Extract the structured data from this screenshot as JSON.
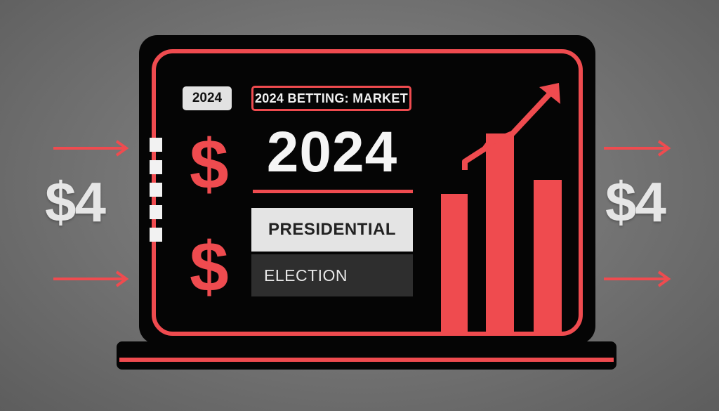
{
  "left_money": "$4",
  "right_money": "$4",
  "screen": {
    "year_badge": "2024",
    "market_badge": "2024 BETTING: MARKET",
    "dollar_top": "$",
    "dollar_bottom": "$",
    "big_year": "2024",
    "panel_light": "PRESIDENTIAL",
    "panel_dark": "ELECTION"
  },
  "colors": {
    "accent": "#ef4b4f",
    "screen": "#050505",
    "background": "#707070"
  },
  "icons": [
    "arrow-right-icon",
    "trend-arrow-icon",
    "bar-chart-icon"
  ]
}
